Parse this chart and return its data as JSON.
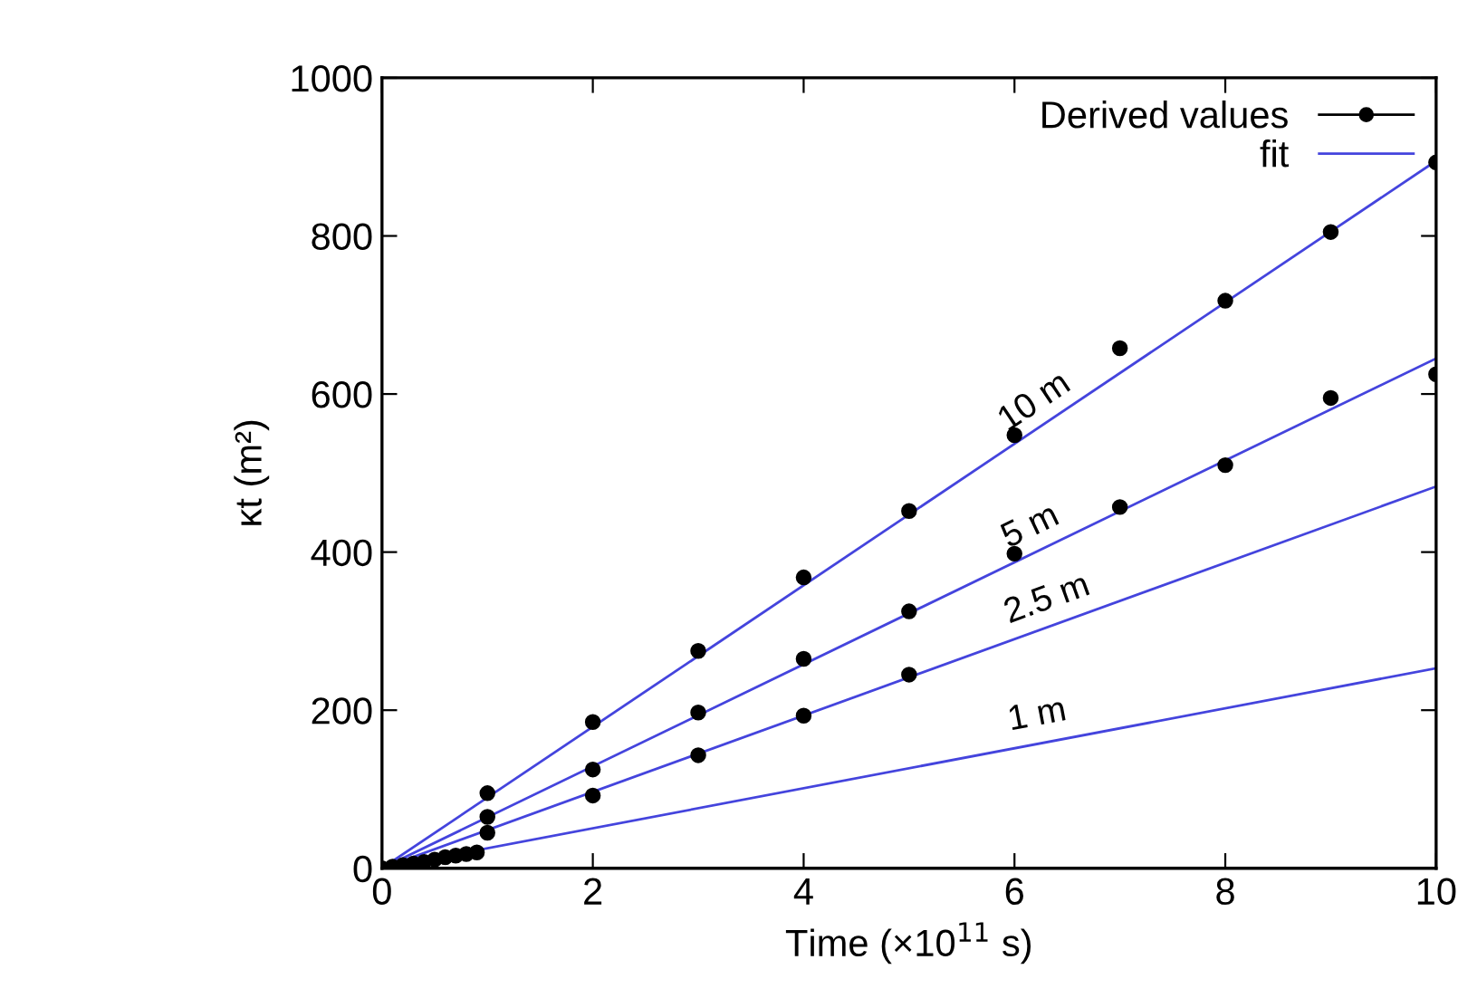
{
  "chart_data": {
    "type": "scatter",
    "xlabel": "Time (×10$^{11}$ s)",
    "ylabel": "κt (m²)",
    "xlim": [
      0,
      10
    ],
    "ylim": [
      0,
      1000
    ],
    "xticks": [
      0,
      2,
      4,
      6,
      8,
      10
    ],
    "yticks": [
      0,
      200,
      400,
      600,
      800,
      1000
    ],
    "grid": false,
    "legend": "top right",
    "series": [
      {
        "name": "Derived values",
        "marker": "circle",
        "color": "#000000",
        "x": [
          0,
          0.1,
          0.2,
          0.3,
          0.4,
          0.5,
          0.6,
          0.7,
          0.8,
          0.9,
          1,
          2,
          3,
          4,
          5,
          6,
          7,
          8,
          9,
          10,
          1,
          2,
          3,
          4,
          5,
          6,
          7,
          8,
          9,
          10,
          1,
          2,
          3,
          4,
          5
        ],
        "values": [
          0,
          2,
          4,
          6,
          8,
          11,
          14,
          16,
          18,
          20,
          95,
          185,
          275,
          368,
          452,
          548,
          658,
          718,
          805,
          893,
          65,
          125,
          197,
          265,
          325,
          398,
          457,
          510,
          595,
          625,
          45,
          92,
          143,
          193,
          245
        ]
      },
      {
        "name": "fit",
        "type": "line",
        "color": "#4444dd",
        "x": [
          0,
          10
        ],
        "values": [
          0,
          895
        ]
      },
      {
        "type": "line",
        "color": "#4444dd",
        "x": [
          0,
          10
        ],
        "values": [
          0,
          645
        ]
      },
      {
        "type": "line",
        "color": "#4444dd",
        "x": [
          0,
          10
        ],
        "values": [
          0,
          483
        ]
      },
      {
        "type": "line",
        "color": "#4444dd",
        "x": [
          0,
          10
        ],
        "values": [
          0,
          253
        ]
      }
    ],
    "annotations": [
      "10 m",
      "5 m",
      "2.5 m",
      "1 m"
    ]
  }
}
